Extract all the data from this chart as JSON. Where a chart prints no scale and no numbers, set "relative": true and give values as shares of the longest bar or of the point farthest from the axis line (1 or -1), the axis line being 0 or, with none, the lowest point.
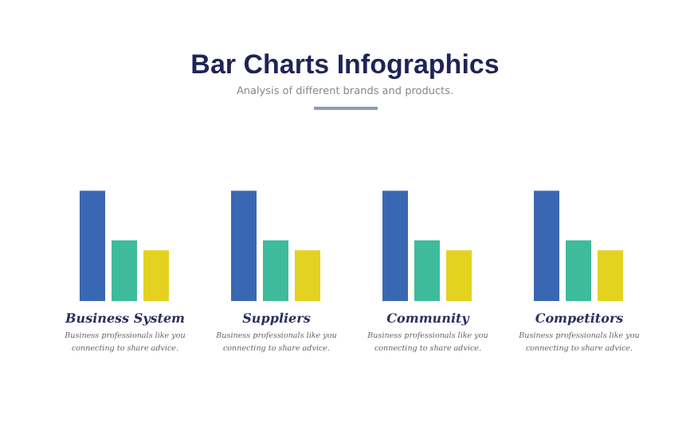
{
  "chart_data": {
    "type": "bar",
    "title": "Bar Charts Infographics",
    "subtitle": "Analysis of different brands and products.",
    "categories": [
      "Business System",
      "Suppliers",
      "Community",
      "Competitors"
    ],
    "series": [
      {
        "color": "#3a67b1",
        "values": [
          1,
          1,
          1,
          1
        ]
      },
      {
        "color": "#3dbb9b",
        "values": [
          0.55,
          0.55,
          0.55,
          0.55
        ]
      },
      {
        "color": "#e3d21f",
        "values": [
          0.46,
          0.46,
          0.46,
          0.46
        ]
      }
    ],
    "relative": true,
    "annotations": [
      "Business professionals like you connecting to share advice.",
      "Business professionals like you connecting to share advice.",
      "Business professionals like you connecting to share advice.",
      "Business professionals like you connecting to share advice."
    ]
  }
}
